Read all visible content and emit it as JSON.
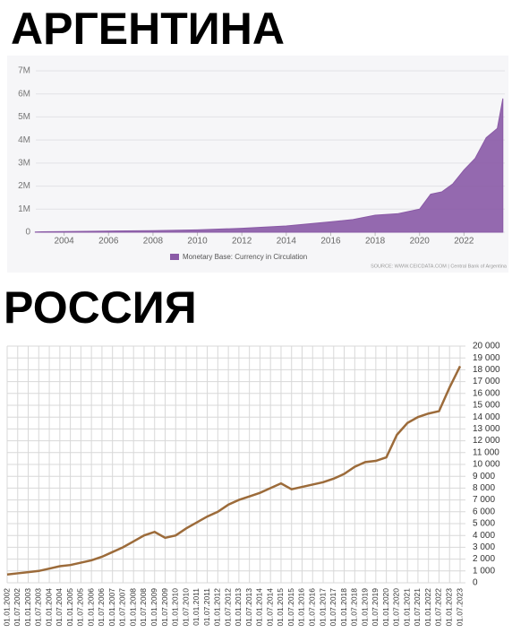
{
  "chart_data": [
    {
      "type": "area",
      "title": "АРГЕНТИНА",
      "x": [
        2002.7,
        2003,
        2005,
        2008,
        2010,
        2012,
        2014,
        2016,
        2017,
        2018,
        2019,
        2020,
        2020.5,
        2021,
        2021.5,
        2022,
        2022.5,
        2023,
        2023.5,
        2023.75
      ],
      "series": [
        {
          "name": "Monetary Base: Currency in Circulation",
          "color": "#8a5aa6",
          "values": [
            10000,
            20000,
            40000,
            70000,
            100000,
            170000,
            270000,
            450000,
            550000,
            740000,
            800000,
            1000000,
            1650000,
            1750000,
            2100000,
            2700000,
            3200000,
            4100000,
            4500000,
            5800000
          ]
        }
      ],
      "xlim": [
        2002,
        2024
      ],
      "xticks": [
        2004,
        2006,
        2008,
        2010,
        2012,
        2014,
        2016,
        2018,
        2020,
        2022
      ],
      "ylim": [
        0,
        7000000
      ],
      "yticks": [
        0,
        {
          "value": 1000000,
          "label": "1M"
        },
        {
          "value": 2000000,
          "label": "2M"
        },
        {
          "value": 3000000,
          "label": "3M"
        },
        {
          "value": 4000000,
          "label": "4M"
        },
        {
          "value": 5000000,
          "label": "5M"
        },
        {
          "value": 6000000,
          "label": "6M"
        },
        {
          "value": 7000000,
          "label": "7M"
        }
      ],
      "grid": true,
      "source": "SOURCE: WWW.CEICDATA.COM | Central Bank of Argentina"
    },
    {
      "type": "line",
      "title": "РОССИЯ",
      "categories": [
        "01.01.2002",
        "01.07.2002",
        "01.01.2003",
        "01.07.2003",
        "01.01.2004",
        "01.07.2004",
        "01.01.2005",
        "01.07.2005",
        "01.01.2006",
        "01.07.2006",
        "01.01.2007",
        "01.07.2007",
        "01.01.2008",
        "01.07.2008",
        "01.01.2009",
        "01.07.2009",
        "01.01.2010",
        "01.07.2010",
        "01.01.2011",
        "01.07.2011",
        "01.01.2012",
        "01.07.2012",
        "01.01.2013",
        "01.07.2013",
        "01.01.2014",
        "01.07.2014",
        "01.01.2015",
        "01.07.2015",
        "01.01.2016",
        "01.07.2016",
        "01.01.2017",
        "01.07.2017",
        "01.01.2018",
        "01.07.2018",
        "01.01.2019",
        "01.07.2019",
        "01.01.2020",
        "01.07.2020",
        "01.01.2021",
        "01.07.2021",
        "01.01.2022",
        "01.07.2022",
        "01.01.2023",
        "01.07.2023"
      ],
      "series": [
        {
          "color": "#9c6b3a",
          "values": [
            700,
            800,
            900,
            1000,
            1200,
            1400,
            1500,
            1700,
            1900,
            2200,
            2600,
            3000,
            3500,
            4000,
            4300,
            3800,
            4000,
            4600,
            5100,
            5600,
            6000,
            6600,
            7000,
            7300,
            7600,
            8000,
            8400,
            7900,
            8100,
            8300,
            8500,
            8800,
            9200,
            9800,
            10200,
            10300,
            10600,
            12500,
            13500,
            14000,
            14300,
            14500,
            16500,
            18300
          ]
        }
      ],
      "ylim": [
        0,
        20000
      ],
      "yticks": [
        0,
        {
          "value": 1000,
          "label": "1 000"
        },
        {
          "value": 2000,
          "label": "2 000"
        },
        {
          "value": 3000,
          "label": "3 000"
        },
        {
          "value": 4000,
          "label": "4 000"
        },
        {
          "value": 5000,
          "label": "5 000"
        },
        {
          "value": 6000,
          "label": "6 000"
        },
        {
          "value": 7000,
          "label": "7 000"
        },
        {
          "value": 8000,
          "label": "8 000"
        },
        {
          "value": 9000,
          "label": "9 000"
        },
        {
          "value": 10000,
          "label": "10 000"
        },
        {
          "value": 11000,
          "label": "11 000"
        },
        {
          "value": 12000,
          "label": "12 000"
        },
        {
          "value": 13000,
          "label": "13 000"
        },
        {
          "value": 14000,
          "label": "14 000"
        },
        {
          "value": 15000,
          "label": "15 000"
        },
        {
          "value": 16000,
          "label": "16 000"
        },
        {
          "value": 17000,
          "label": "17 000"
        },
        {
          "value": 18000,
          "label": "18 000"
        },
        {
          "value": 19000,
          "label": "19 000"
        },
        {
          "value": 20000,
          "label": "20 000"
        }
      ],
      "grid": true
    }
  ]
}
